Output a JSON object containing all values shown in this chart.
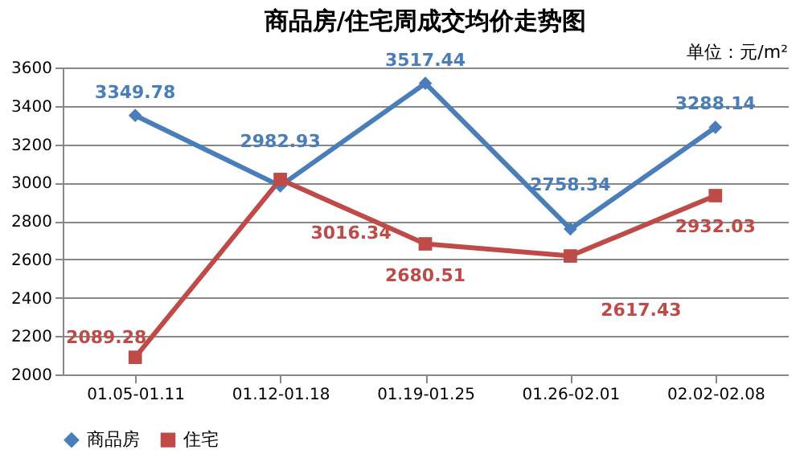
{
  "chart_data": {
    "type": "line",
    "title": "商品房/住宅周成交均价走势图",
    "annotations": [
      "单位：元/m²"
    ],
    "categories": [
      "01.05-01.11",
      "01.12-01.18",
      "01.19-01.25",
      "01.26-02.01",
      "02.02-02.08"
    ],
    "series": [
      {
        "name": "商品房",
        "color": "#4a7ebb",
        "marker": "diamond",
        "values": [
          3349.78,
          2982.93,
          3517.44,
          2758.34,
          3288.14
        ]
      },
      {
        "name": "住宅",
        "color": "#be4b48",
        "marker": "square",
        "values": [
          2089.28,
          3016.34,
          2680.51,
          2617.43,
          2932.03
        ]
      }
    ],
    "ylim": [
      2000,
      3600
    ],
    "yticks": [
      2000,
      2200,
      2400,
      2600,
      2800,
      3000,
      3200,
      3400,
      3600
    ],
    "grid": "y",
    "legend": "bottom",
    "data_labels": true,
    "line_style": "solid"
  }
}
